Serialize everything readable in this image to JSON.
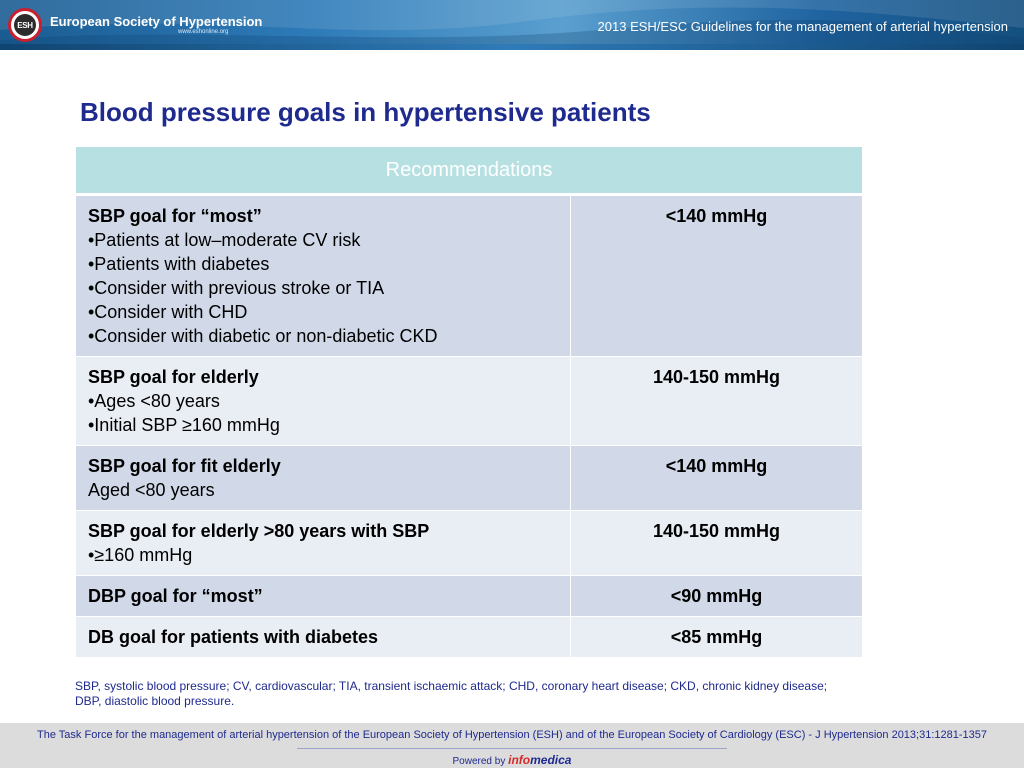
{
  "header": {
    "logo_text": "ESH",
    "org_name": "European Society of Hypertension",
    "org_url": "www.eshonline.org",
    "presentation_title": "2013 ESH/ESC Guidelines for the management of arterial hypertension"
  },
  "slide": {
    "title": "Blood pressure goals in hypertensive patients"
  },
  "table": {
    "header": "Recommendations",
    "rows": [
      {
        "goal": "SBP goal for “most”",
        "items": [
          "•Patients at low–moderate CV risk",
          "•Patients with diabetes",
          "•Consider with previous stroke or TIA",
          "•Consider with CHD",
          "•Consider with diabetic or non-diabetic CKD"
        ],
        "value": "<140 mmHg"
      },
      {
        "goal": "SBP goal for elderly",
        "items": [
          "•Ages <80 years",
          "•Initial SBP ≥160 mmHg"
        ],
        "value": "140-150 mmHg"
      },
      {
        "goal": "SBP goal for fit elderly",
        "items": [
          "Aged <80 years"
        ],
        "value": "<140 mmHg"
      },
      {
        "goal": "SBP goal for elderly >80 years with SBP",
        "items": [
          "•≥160 mmHg"
        ],
        "value": "140-150 mmHg"
      },
      {
        "goal": "DBP goal for “most”",
        "items": [],
        "value": "<90 mmHg"
      },
      {
        "goal": "DB goal for patients with diabetes",
        "items": [],
        "value": "<85 mmHg"
      }
    ]
  },
  "footnote": {
    "line1": "SBP, systolic blood pressure; CV, cardiovascular; TIA, transient ischaemic attack; CHD, coronary heart disease; CKD, chronic kidney disease;",
    "line2": "DBP, diastolic blood pressure."
  },
  "footer": {
    "citation": "The Task Force for the management of arterial hypertension of the European Society of Hypertension (ESH) and of the European Society of Cardiology (ESC) - J Hypertension 2013;31:1281-1357",
    "powered_by": "Powered by",
    "brand_part1": "info",
    "brand_part2": "medica"
  },
  "colors": {
    "title_navy": "#1f2a8f",
    "header_teal": "#b7e0e2",
    "row_dark": "#d1d9e9",
    "row_light": "#e9edf4",
    "banner_blue": "#2d7ab8",
    "logo_red": "#c8202f"
  }
}
